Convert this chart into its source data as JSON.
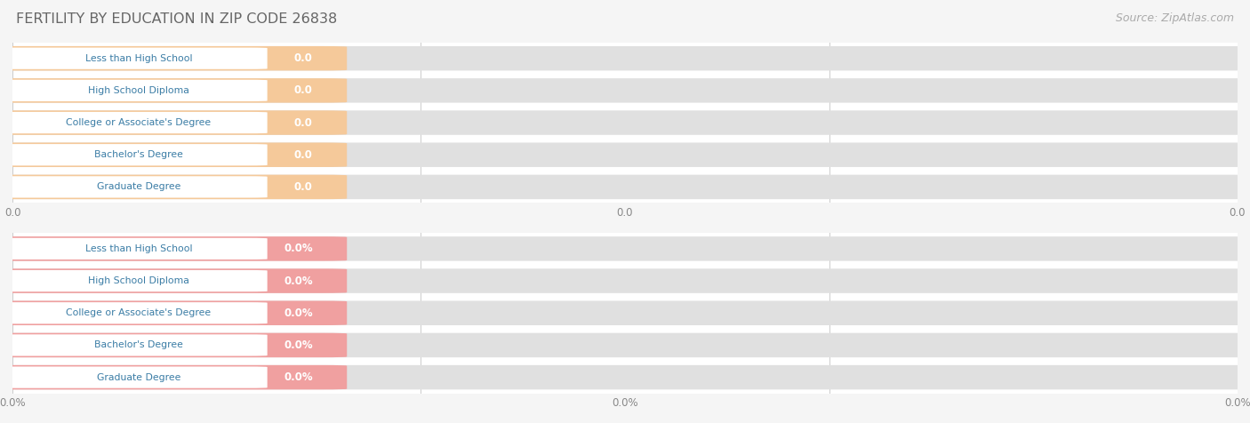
{
  "title": "FERTILITY BY EDUCATION IN ZIP CODE 26838",
  "source_text": "Source: ZipAtlas.com",
  "categories": [
    "Less than High School",
    "High School Diploma",
    "College or Associate's Degree",
    "Bachelor's Degree",
    "Graduate Degree"
  ],
  "top_values": [
    0.0,
    0.0,
    0.0,
    0.0,
    0.0
  ],
  "bottom_values": [
    0.0,
    0.0,
    0.0,
    0.0,
    0.0
  ],
  "top_bar_color": "#f5c99a",
  "bottom_bar_color": "#f0a0a0",
  "bar_bg_color": "#e0e0e0",
  "label_text_color": "#3a7ca5",
  "label_bg_color": "#ffffff",
  "value_text_color": "#ffffff",
  "title_color": "#666666",
  "source_color": "#aaaaaa",
  "row_bg_even": "#f2f2f2",
  "row_bg_odd": "#fafafa",
  "grid_line_color": "#cccccc",
  "tick_label_color": "#888888",
  "figsize": [
    14.06,
    4.76
  ],
  "dpi": 100
}
